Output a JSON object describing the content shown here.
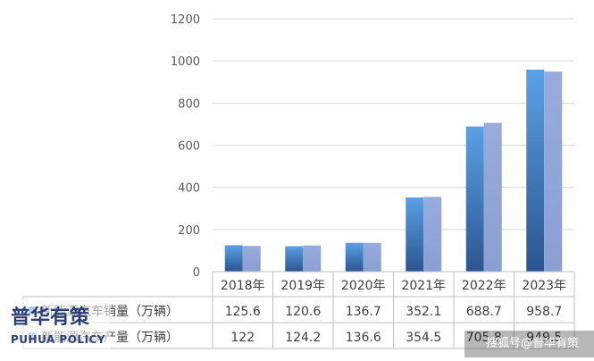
{
  "chart_data": {
    "type": "bar",
    "categories": [
      "2018年",
      "2019年",
      "2020年",
      "2021年",
      "2022年",
      "2023年"
    ],
    "series": [
      {
        "name": "新能源汽车销量（万辆）",
        "values": [
          125.6,
          120.6,
          136.7,
          352.1,
          688.7,
          958.7
        ],
        "value_labels": [
          "125.6",
          "120.6",
          "136.7",
          "352.1",
          "688.7",
          "958.7"
        ],
        "color": "#4a90d9"
      },
      {
        "name": "新能源汽车产量（万辆）",
        "values": [
          122,
          124.2,
          136.6,
          354.5,
          705.8,
          949.5
        ],
        "value_labels": [
          "122",
          "124.2",
          "136.6",
          "354.5",
          "705.8",
          "949.5"
        ],
        "color": "#93a7d8"
      }
    ],
    "yticks": [
      "0",
      "200",
      "400",
      "600",
      "800",
      "1000",
      "1200"
    ],
    "ylim": [
      0,
      1200
    ],
    "grid": true,
    "legend": "data-table"
  },
  "logo": {
    "cn": "普华有策",
    "en": "PUHUA POLICY"
  },
  "watermark": "搜狐号@普华有策"
}
